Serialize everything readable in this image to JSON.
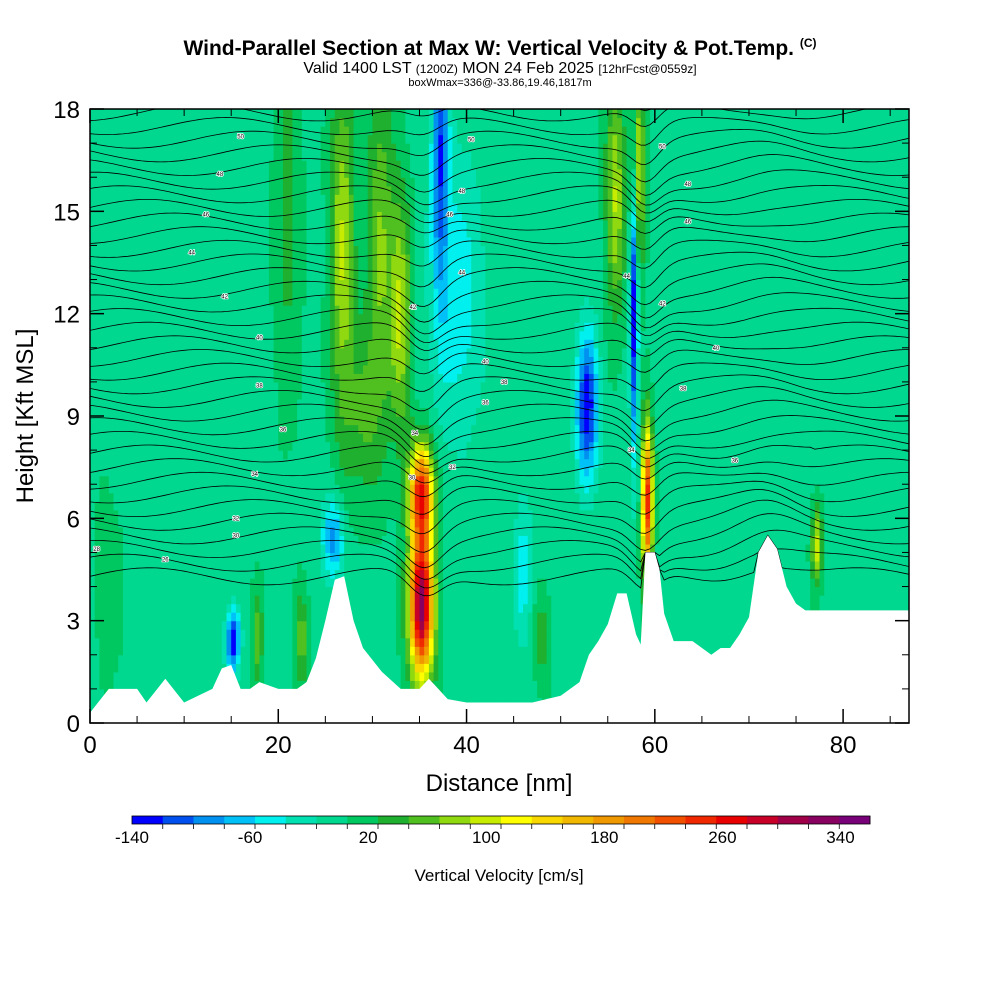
{
  "header": {
    "title_main": "Wind-Parallel Section at Max W: Vertical Velocity & Pot.Temp.",
    "title_mark": "(C)",
    "valid_prefix": "Valid 1400 LST",
    "valid_utc": "(1200Z)",
    "valid_day": "MON 24 Feb 2025",
    "forecast": "[12hrFcst@0559z]",
    "box_info": "boxWmax=336@-33.86,19.46,1817m"
  },
  "chart_data": {
    "type": "heatmap",
    "xlabel": "Distance [nm]",
    "ylabel": "Height [Kft MSL]",
    "xlim": [
      0,
      87
    ],
    "ylim": [
      0,
      18
    ],
    "x_ticks": [
      0,
      20,
      40,
      60,
      80
    ],
    "y_ticks": [
      0,
      3,
      6,
      9,
      12,
      15,
      18
    ],
    "colorbar": {
      "label": "Vertical Velocity [cm/s]",
      "tick_labels": [
        -140,
        -60,
        20,
        100,
        180,
        260,
        340
      ],
      "min": -140,
      "max": 360,
      "colors": [
        "#0000ff",
        "#0050f0",
        "#0090f0",
        "#00c0f8",
        "#00f0f0",
        "#00e0b0",
        "#00d890",
        "#00c860",
        "#20b030",
        "#50c020",
        "#90d810",
        "#c8ec00",
        "#ffff00",
        "#f8d800",
        "#f0b800",
        "#f09800",
        "#f07800",
        "#f05000",
        "#f02800",
        "#e80000",
        "#c80028",
        "#a00048",
        "#880060",
        "#780078"
      ]
    },
    "terrain_kft": [
      [
        0,
        0.3
      ],
      [
        2,
        1
      ],
      [
        5,
        1
      ],
      [
        6,
        0.6
      ],
      [
        8,
        1.3
      ],
      [
        10,
        0.6
      ],
      [
        13,
        1
      ],
      [
        14,
        1.6
      ],
      [
        15,
        1.7
      ],
      [
        16,
        1
      ],
      [
        17,
        1
      ],
      [
        18,
        1.2
      ],
      [
        20,
        1
      ],
      [
        22,
        1
      ],
      [
        23,
        1.2
      ],
      [
        24,
        1.9
      ],
      [
        25,
        3
      ],
      [
        26,
        4.2
      ],
      [
        27,
        4.3
      ],
      [
        28,
        3
      ],
      [
        29,
        2.2
      ],
      [
        31,
        1.5
      ],
      [
        33,
        1
      ],
      [
        35,
        1
      ],
      [
        36,
        1.3
      ],
      [
        37,
        1
      ],
      [
        38,
        0.7
      ],
      [
        40,
        0.6
      ],
      [
        44,
        0.6
      ],
      [
        47,
        0.6
      ],
      [
        50,
        0.8
      ],
      [
        52,
        1.2
      ],
      [
        53,
        2
      ],
      [
        54,
        2.4
      ],
      [
        55,
        2.9
      ],
      [
        56,
        3.8
      ],
      [
        57,
        3.8
      ],
      [
        58,
        2.6
      ],
      [
        58.5,
        2.3
      ],
      [
        59,
        5
      ],
      [
        60,
        5
      ],
      [
        60.5,
        4.5
      ],
      [
        61,
        3.2
      ],
      [
        62,
        2.4
      ],
      [
        64,
        2.4
      ],
      [
        66,
        2
      ],
      [
        67,
        2.2
      ],
      [
        68,
        2.2
      ],
      [
        69,
        2.6
      ],
      [
        70,
        3.1
      ],
      [
        71,
        5
      ],
      [
        72,
        5.5
      ],
      [
        73,
        5.1
      ],
      [
        74,
        4
      ],
      [
        75,
        3.5
      ],
      [
        76,
        3.3
      ],
      [
        87,
        3.3
      ]
    ],
    "theta_labels": [
      {
        "text": "50",
        "x": 16,
        "y": 17.2
      },
      {
        "text": "48",
        "x": 13.8,
        "y": 16.1
      },
      {
        "text": "46",
        "x": 12.3,
        "y": 14.9
      },
      {
        "text": "44",
        "x": 10.8,
        "y": 13.8
      },
      {
        "text": "42",
        "x": 14.3,
        "y": 12.5
      },
      {
        "text": "40",
        "x": 18,
        "y": 11.3
      },
      {
        "text": "38",
        "x": 18,
        "y": 9.9
      },
      {
        "text": "36",
        "x": 20.5,
        "y": 8.6
      },
      {
        "text": "34",
        "x": 17.5,
        "y": 7.3
      },
      {
        "text": "32",
        "x": 15.5,
        "y": 6
      },
      {
        "text": "30",
        "x": 15.5,
        "y": 5.5
      },
      {
        "text": "28",
        "x": 0.7,
        "y": 5.1
      },
      {
        "text": "26",
        "x": 8,
        "y": 4.8
      },
      {
        "text": "50",
        "x": 40.5,
        "y": 17.1
      },
      {
        "text": "48",
        "x": 39.5,
        "y": 15.6
      },
      {
        "text": "46",
        "x": 38.2,
        "y": 14.9
      },
      {
        "text": "44",
        "x": 39.5,
        "y": 13.2
      },
      {
        "text": "42",
        "x": 34.3,
        "y": 12.2
      },
      {
        "text": "40",
        "x": 42,
        "y": 10.6
      },
      {
        "text": "38",
        "x": 44,
        "y": 10
      },
      {
        "text": "36",
        "x": 42,
        "y": 9.4
      },
      {
        "text": "34",
        "x": 34.5,
        "y": 8.5
      },
      {
        "text": "32",
        "x": 38.5,
        "y": 7.5
      },
      {
        "text": "30",
        "x": 34.2,
        "y": 7.2
      },
      {
        "text": "50",
        "x": 60.8,
        "y": 16.9
      },
      {
        "text": "48",
        "x": 63.5,
        "y": 15.8
      },
      {
        "text": "46",
        "x": 63.5,
        "y": 14.7
      },
      {
        "text": "44",
        "x": 57,
        "y": 13.1
      },
      {
        "text": "42",
        "x": 60.8,
        "y": 12.3
      },
      {
        "text": "40",
        "x": 66.5,
        "y": 11
      },
      {
        "text": "38",
        "x": 63,
        "y": 9.8
      },
      {
        "text": "36",
        "x": 68.5,
        "y": 7.7
      },
      {
        "text": "34",
        "x": 57.5,
        "y": 8
      }
    ]
  }
}
